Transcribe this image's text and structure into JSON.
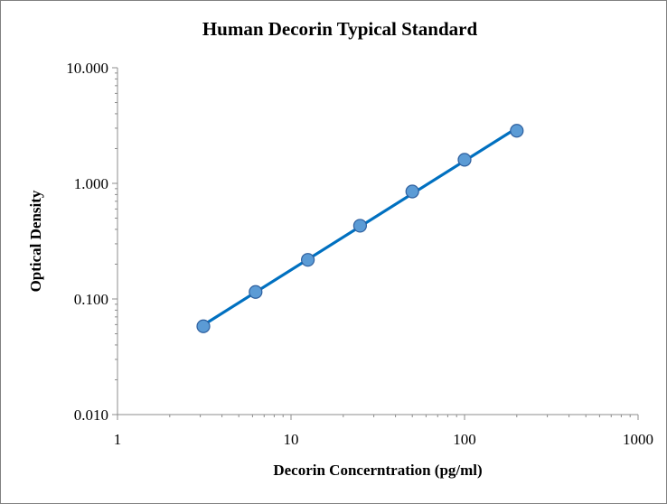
{
  "chart_data": {
    "type": "scatter",
    "title": "Human Decorin Typical Standard",
    "xlabel": "Decorin Concerntration (pg/ml)",
    "ylabel": "Optical Density",
    "xscale": "log",
    "yscale": "log",
    "xlim": [
      1,
      1000
    ],
    "ylim": [
      0.01,
      10
    ],
    "xticks": [
      "1",
      "10",
      "100",
      "1000"
    ],
    "yticks": [
      "0.010",
      "0.100",
      "1.000",
      "10.000"
    ],
    "grid": false,
    "legend": "none",
    "series": [
      {
        "x": [
          3.125,
          6.25,
          12.5,
          25,
          50,
          100,
          200
        ],
        "y": [
          0.058,
          0.115,
          0.218,
          0.43,
          0.85,
          1.6,
          2.85
        ],
        "color": "#0070c0",
        "marker_fill": "#5b9bd5",
        "marker_edge": "#2e5f9e",
        "line": "fit"
      }
    ]
  }
}
